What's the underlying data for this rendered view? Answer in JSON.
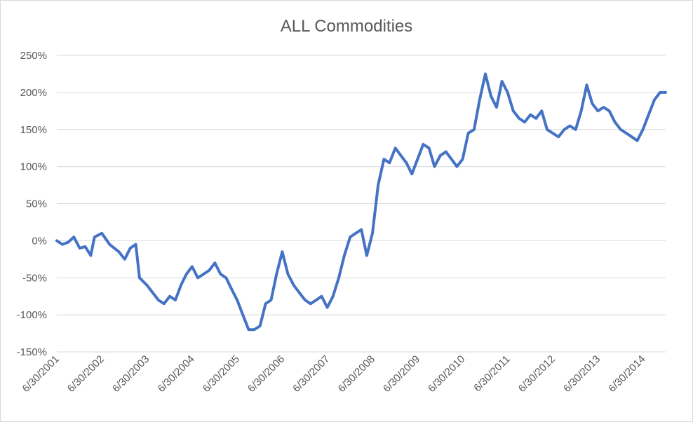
{
  "chart_data": {
    "type": "line",
    "title": "ALL Commodities",
    "xlabel": "",
    "ylabel": "",
    "y_unit": "%",
    "ylim": [
      -150,
      250
    ],
    "yticks": [
      -150,
      -100,
      -50,
      0,
      50,
      100,
      150,
      200,
      250
    ],
    "ytick_labels": [
      "-150%",
      "-100%",
      "-50%",
      "0%",
      "50%",
      "100%",
      "150%",
      "200%",
      "250%"
    ],
    "xlim": [
      "2001-06-30",
      "2014-12-31"
    ],
    "xticks": [
      "2001-06-30",
      "2002-06-30",
      "2003-06-30",
      "2004-06-30",
      "2005-06-30",
      "2006-06-30",
      "2007-06-30",
      "2008-06-30",
      "2009-06-30",
      "2010-06-30",
      "2011-06-30",
      "2012-06-30",
      "2013-06-30",
      "2014-06-30"
    ],
    "xtick_labels": [
      "6/30/2001",
      "6/30/2002",
      "6/30/2003",
      "6/30/2004",
      "6/30/2005",
      "6/30/2006",
      "6/30/2007",
      "6/30/2008",
      "6/30/2009",
      "6/30/2010",
      "6/30/2011",
      "6/30/2012",
      "6/30/2013",
      "6/30/2014"
    ],
    "grid": true,
    "legend": "none",
    "series_color": "#4472C4",
    "series": [
      {
        "x": [
          "2001-06-30",
          "2001-08-15",
          "2001-09-30",
          "2001-11-15",
          "2002-01-01",
          "2002-02-15",
          "2002-04-01",
          "2002-05-01",
          "2002-06-30",
          "2002-09-01",
          "2002-11-15",
          "2003-01-01",
          "2003-02-15",
          "2003-04-01",
          "2003-05-01",
          "2003-06-30",
          "2003-08-15",
          "2003-10-01",
          "2003-11-15",
          "2004-01-01",
          "2004-02-15",
          "2004-04-01",
          "2004-05-15",
          "2004-06-30",
          "2004-08-15",
          "2004-10-01",
          "2004-11-15",
          "2005-01-01",
          "2005-02-15",
          "2005-04-01",
          "2005-05-15",
          "2005-06-30",
          "2005-08-15",
          "2005-10-01",
          "2005-11-15",
          "2006-01-01",
          "2006-02-15",
          "2006-04-01",
          "2006-05-15",
          "2006-06-30",
          "2006-08-15",
          "2006-10-01",
          "2006-11-15",
          "2007-01-01",
          "2007-02-15",
          "2007-04-01",
          "2007-05-15",
          "2007-06-30",
          "2007-08-15",
          "2007-10-01",
          "2007-11-15",
          "2008-01-01",
          "2008-02-15",
          "2008-04-01",
          "2008-05-15",
          "2008-06-30",
          "2008-08-15",
          "2008-10-01",
          "2008-11-15",
          "2009-01-01",
          "2009-02-15",
          "2009-04-01",
          "2009-05-15",
          "2009-06-30",
          "2009-08-15",
          "2009-10-01",
          "2009-11-15",
          "2010-01-01",
          "2010-02-15",
          "2010-04-01",
          "2010-05-15",
          "2010-06-30",
          "2010-08-15",
          "2010-10-01",
          "2010-11-15",
          "2011-01-01",
          "2011-02-15",
          "2011-04-01",
          "2011-05-15",
          "2011-06-30",
          "2011-08-15",
          "2011-10-01",
          "2011-11-15",
          "2012-01-01",
          "2012-02-15",
          "2012-04-01",
          "2012-05-15",
          "2012-06-30",
          "2012-08-15",
          "2012-10-01",
          "2012-11-15",
          "2013-01-01",
          "2013-02-15",
          "2013-04-01",
          "2013-05-15",
          "2013-06-30",
          "2013-08-15",
          "2013-10-01",
          "2013-11-15",
          "2014-01-01",
          "2014-02-15",
          "2014-04-01",
          "2014-05-15",
          "2014-06-30",
          "2014-08-15",
          "2014-10-01",
          "2014-11-15",
          "2014-12-15",
          "2014-12-31"
        ],
        "values": [
          0,
          -5,
          -2,
          5,
          -10,
          -8,
          -20,
          5,
          10,
          -5,
          -15,
          -25,
          -10,
          -5,
          -50,
          -60,
          -70,
          -80,
          -85,
          -75,
          -80,
          -60,
          -45,
          -35,
          -50,
          -45,
          -40,
          -30,
          -45,
          -50,
          -65,
          -80,
          -100,
          -120,
          -120,
          -115,
          -85,
          -80,
          -45,
          -15,
          -45,
          -60,
          -70,
          -80,
          -85,
          -80,
          -75,
          -90,
          -75,
          -50,
          -20,
          5,
          10,
          15,
          -20,
          10,
          75,
          110,
          105,
          125,
          115,
          105,
          90,
          110,
          130,
          125,
          100,
          115,
          120,
          110,
          100,
          110,
          145,
          150,
          190,
          225,
          195,
          180,
          215,
          200,
          175,
          165,
          160,
          170,
          165,
          175,
          150,
          145,
          140,
          150,
          155,
          150,
          175,
          210,
          185,
          175,
          180,
          175,
          160,
          150,
          145,
          140,
          135,
          150,
          170,
          190,
          200,
          200,
          200
        ]
      }
    ]
  }
}
